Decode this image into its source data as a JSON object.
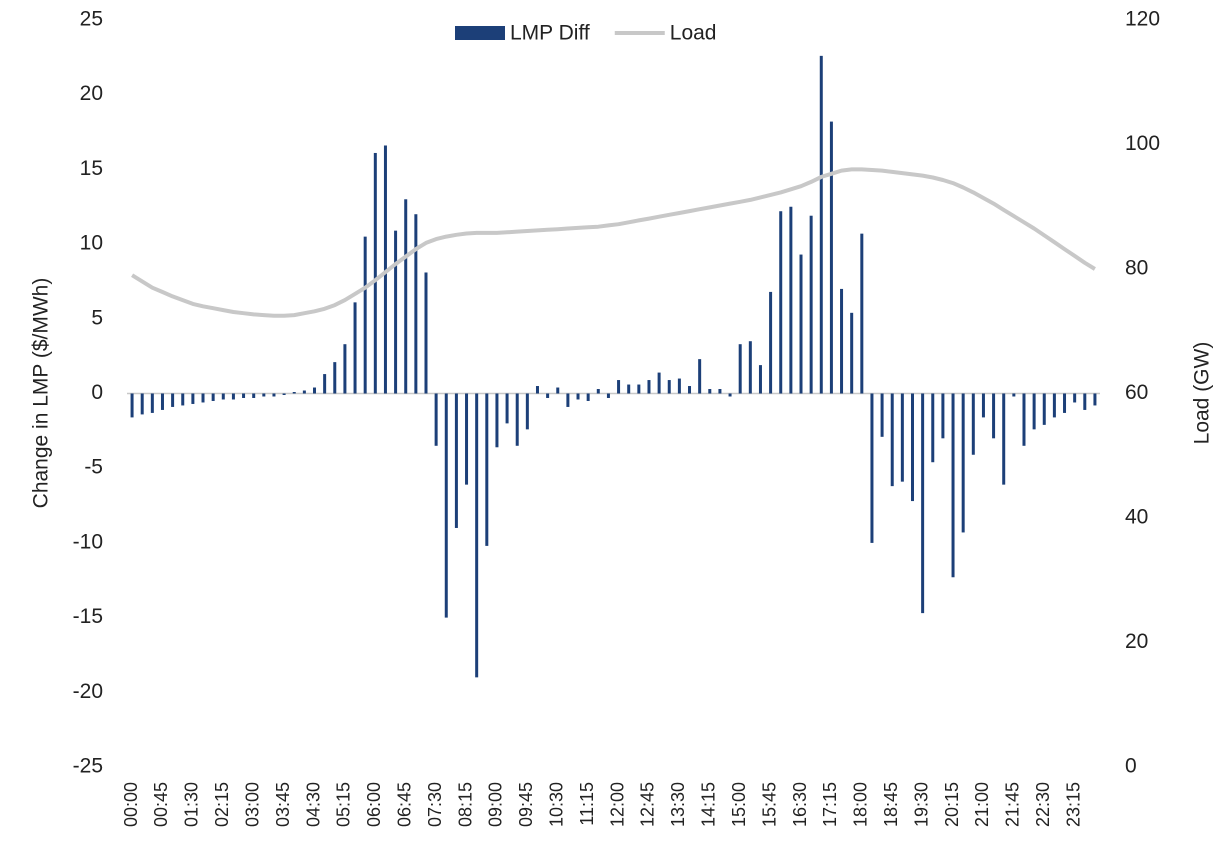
{
  "chart_data": {
    "type": "bar",
    "y_label": "Change in LMP ($/MWh)",
    "y2_label": "Load (GW)",
    "categories": [
      "00:00",
      null,
      null,
      "00:45",
      null,
      null,
      "01:30",
      null,
      null,
      "02:15",
      null,
      null,
      "03:00",
      null,
      null,
      "03:45",
      null,
      null,
      "04:30",
      null,
      null,
      "05:15",
      null,
      null,
      "06:00",
      null,
      null,
      "06:45",
      null,
      null,
      "07:30",
      null,
      null,
      "08:15",
      null,
      null,
      "09:00",
      null,
      null,
      "09:45",
      null,
      null,
      "10:30",
      null,
      null,
      "11:15",
      null,
      null,
      "12:00",
      null,
      null,
      "12:45",
      null,
      null,
      "13:30",
      null,
      null,
      "14:15",
      null,
      null,
      "15:00",
      null,
      null,
      "15:45",
      null,
      null,
      "16:30",
      null,
      null,
      "17:15",
      null,
      null,
      "18:00",
      null,
      null,
      "18:45",
      null,
      null,
      "19:30",
      null,
      null,
      "20:15",
      null,
      null,
      "21:00",
      null,
      null,
      "21:45",
      null,
      null,
      "22:30",
      null,
      null,
      "23:15",
      null,
      null
    ],
    "series": [
      {
        "name": "LMP Diff",
        "color": "#1c3f78",
        "values": [
          -1.6,
          -1.4,
          -1.3,
          -1.1,
          -0.9,
          -0.8,
          -0.7,
          -0.6,
          -0.5,
          -0.4,
          -0.4,
          -0.3,
          -0.3,
          -0.2,
          -0.2,
          -0.1,
          0.1,
          0.2,
          0.4,
          1.3,
          2.1,
          3.3,
          6.1,
          10.5,
          16.1,
          16.6,
          10.9,
          13.0,
          12.0,
          8.1,
          -3.5,
          -15.0,
          -9.0,
          -6.1,
          -19.0,
          -10.2,
          -3.6,
          -2.0,
          -3.5,
          -2.4,
          0.5,
          -0.3,
          0.4,
          -0.9,
          -0.4,
          -0.5,
          0.3,
          -0.3,
          0.9,
          0.6,
          0.6,
          0.9,
          1.4,
          0.9,
          1.0,
          0.5,
          2.3,
          0.3,
          0.3,
          -0.2,
          3.3,
          3.5,
          1.9,
          6.8,
          12.2,
          12.5,
          9.3,
          11.9,
          22.6,
          18.2,
          7.0,
          5.4,
          10.7,
          -10.0,
          -2.9,
          -6.2,
          -5.9,
          -7.2,
          -14.7,
          -4.6,
          -3.0,
          -12.3,
          -9.3,
          -4.1,
          -1.6,
          -3.0,
          -6.1,
          -0.2,
          -3.5,
          -2.4,
          -2.1,
          -1.6,
          -1.3,
          -0.6,
          -1.1,
          -0.8
        ]
      },
      {
        "name": "Load",
        "type": "line",
        "axis": "y2",
        "color": "#c8c8c8",
        "values": [
          79,
          78,
          77,
          76.3,
          75.6,
          75,
          74.4,
          74,
          73.7,
          73.4,
          73.1,
          72.9,
          72.7,
          72.6,
          72.5,
          72.5,
          72.6,
          72.9,
          73.2,
          73.6,
          74.2,
          75,
          76,
          77,
          78.2,
          79.5,
          80.8,
          82,
          83.2,
          84.2,
          84.8,
          85.2,
          85.5,
          85.7,
          85.8,
          85.8,
          85.8,
          85.9,
          86,
          86.1,
          86.2,
          86.3,
          86.4,
          86.5,
          86.6,
          86.7,
          86.8,
          87,
          87.2,
          87.5,
          87.8,
          88.1,
          88.4,
          88.7,
          89,
          89.3,
          89.6,
          89.9,
          90.2,
          90.5,
          90.8,
          91.1,
          91.5,
          91.9,
          92.3,
          92.8,
          93.3,
          94,
          94.8,
          95.3,
          95.8,
          96,
          96,
          95.9,
          95.8,
          95.6,
          95.4,
          95.2,
          95,
          94.7,
          94.3,
          93.8,
          93.1,
          92.3,
          91.4,
          90.5,
          89.5,
          88.5,
          87.5,
          86.5,
          85.4,
          84.3,
          83.2,
          82.1,
          81,
          80
        ]
      }
    ],
    "ylim": [
      -25,
      25
    ],
    "yticks": [
      -25,
      -20,
      -15,
      -10,
      -5,
      0,
      5,
      10,
      15,
      20,
      25
    ],
    "y2lim": [
      0,
      120
    ],
    "y2ticks": [
      0,
      20,
      40,
      60,
      80,
      100,
      120
    ],
    "grid": false,
    "legend": "top"
  }
}
